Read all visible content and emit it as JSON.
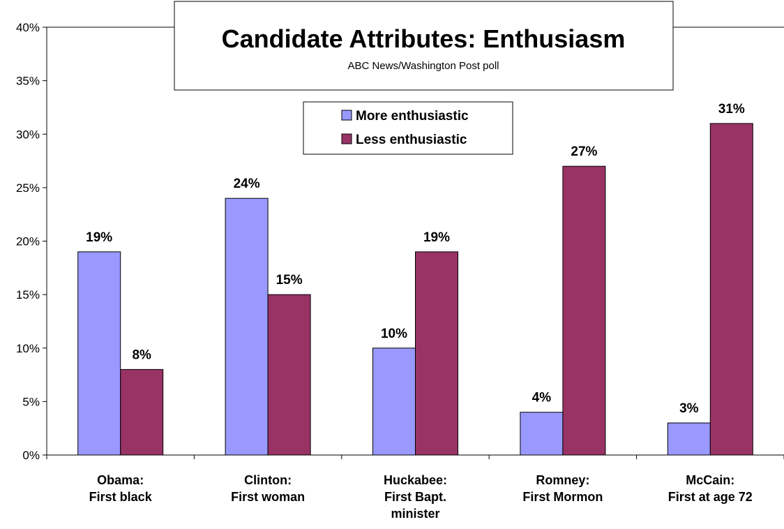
{
  "chart_data": {
    "type": "bar",
    "title": "Candidate Attributes: Enthusiasm",
    "subtitle": "ABC News/Washington Post poll",
    "categories": [
      [
        "Obama:",
        "First black"
      ],
      [
        "Clinton:",
        "First woman"
      ],
      [
        "Huckabee:",
        "First Bapt.",
        "minister"
      ],
      [
        "Romney:",
        "First Mormon"
      ],
      [
        "McCain:",
        "First at age 72"
      ]
    ],
    "series": [
      {
        "name": "More enthusiastic",
        "color": "#9999ff",
        "values": [
          19,
          24,
          10,
          4,
          3
        ]
      },
      {
        "name": "Less enthusiastic",
        "color": "#993366",
        "values": [
          8,
          15,
          19,
          27,
          31
        ]
      }
    ],
    "value_suffix": "%",
    "ylim": [
      0,
      40
    ],
    "yticks": [
      0,
      5,
      10,
      15,
      20,
      25,
      30,
      35,
      40
    ],
    "xlabel": "",
    "ylabel": "",
    "grid": false,
    "legend_position": "top-center"
  }
}
